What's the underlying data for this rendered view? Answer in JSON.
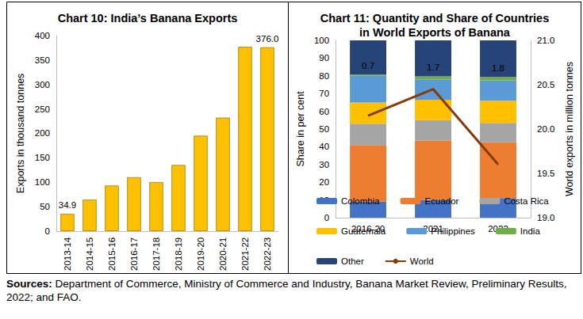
{
  "chart_data": [
    {
      "type": "bar",
      "title": "Chart 10: India’s Banana Exports",
      "y_label": "Exports in thousand tonnes",
      "categories": [
        "2013-14",
        "2014-15",
        "2015-16",
        "2016-17",
        "2017-18",
        "2018-19",
        "2019-20",
        "2020-21",
        "2021-22",
        "2022-23"
      ],
      "values": [
        34.9,
        64,
        93,
        110,
        100,
        135,
        195,
        232,
        377,
        376.0
      ],
      "value_labels": [
        "34.9",
        null,
        null,
        null,
        null,
        null,
        null,
        null,
        null,
        "376.0"
      ],
      "color": "#FFC000",
      "data_labels": true,
      "ylim": [
        0,
        400
      ],
      "yticks": [
        0,
        50,
        100,
        150,
        200,
        250,
        300,
        350,
        400
      ],
      "grid": false
    },
    {
      "type": "bar",
      "title": "Chart 11: Quantity and Share of Countries\nin World Exports of Banana",
      "y_label": "Share in per cent",
      "y2_label": "World exports in million tonnes",
      "categories": [
        "2016-20",
        "2021",
        "2022"
      ],
      "stacked": true,
      "series": [
        {
          "name": "Colombia",
          "color": "#4472C4",
          "values": [
            9,
            10,
            11
          ]
        },
        {
          "name": "Ecuador",
          "color": "#ED7D31",
          "values": [
            32,
            33.5,
            31.5
          ]
        },
        {
          "name": "Costa Rica",
          "color": "#A5A5A5",
          "values": [
            12,
            11.5,
            11
          ]
        },
        {
          "name": "Guatemala",
          "color": "#FFC000",
          "values": [
            12,
            11.5,
            12.5
          ]
        },
        {
          "name": "Philippines",
          "color": "#5B9BD5",
          "values": [
            15,
            11.5,
            11.5
          ]
        },
        {
          "name": "India",
          "color": "#70AD47",
          "values": [
            0.7,
            1.7,
            1.8
          ],
          "data_labels": true
        },
        {
          "name": "Other",
          "color": "#264478",
          "values": [
            19.3,
            20.3,
            20.7
          ]
        },
        {
          "name": "World",
          "color": "#843C0C",
          "values": [
            20.15,
            20.45,
            19.6
          ],
          "type": "line",
          "axis": "y2",
          "marker": "none"
        }
      ],
      "ylim": [
        0,
        100
      ],
      "yticks": [
        0,
        10,
        20,
        30,
        40,
        50,
        60,
        70,
        80,
        90,
        100
      ],
      "y2lim": [
        19.0,
        21.0
      ],
      "y2ticks": [
        {
          "value": 19.0,
          "label": "19.0"
        },
        {
          "value": 19.5,
          "label": "19.5"
        },
        {
          "value": 20.0,
          "label": "20.0"
        },
        {
          "value": 20.5,
          "label": "20.5"
        },
        {
          "value": 21.0,
          "label": "21.0"
        }
      ],
      "legend": "bottom",
      "grid": false
    }
  ],
  "source": {
    "label": "Sources:",
    "text": " Department of Commerce, Ministry of Commerce and Industry, Banana Market Review, Preliminary Results, 2022; and FAO."
  }
}
